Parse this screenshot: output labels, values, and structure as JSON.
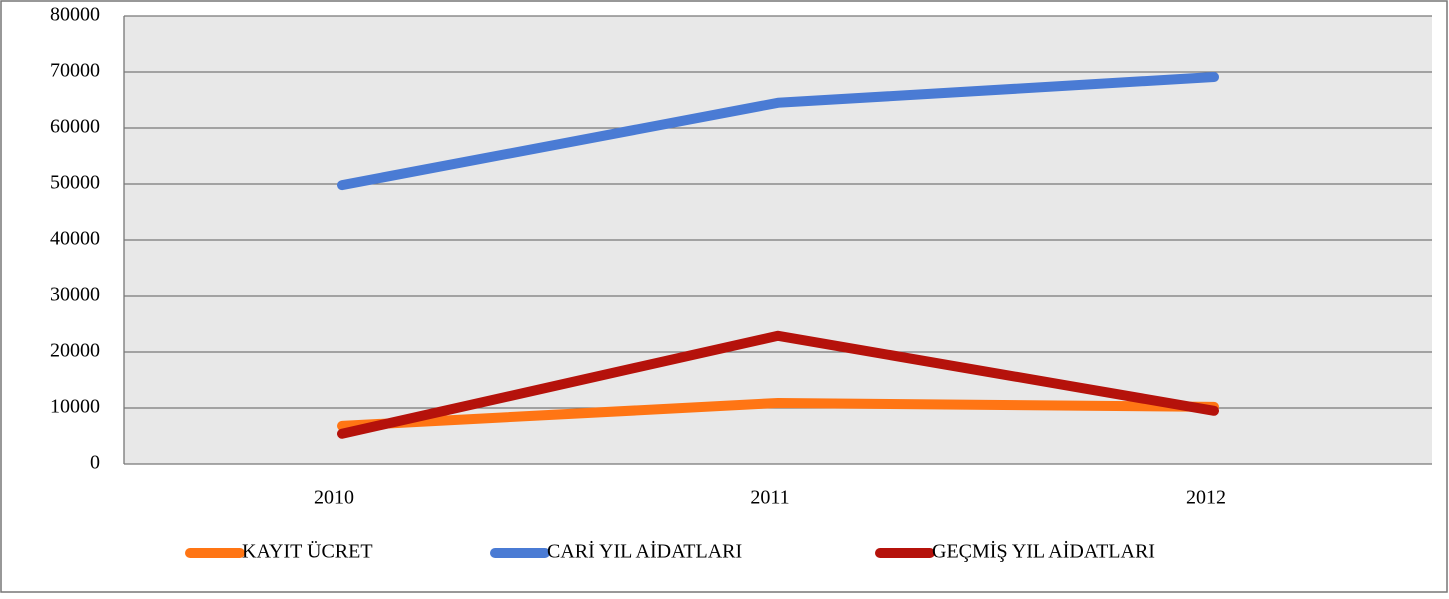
{
  "chart_data": {
    "type": "line",
    "categories": [
      "2010",
      "2011",
      "2012"
    ],
    "series": [
      {
        "name": "KAYIT ÜCRET",
        "color": "#ff7514",
        "values": [
          6800,
          10900,
          10200
        ]
      },
      {
        "name": "CARİ YIL AİDATLARI",
        "color": "#4a7bd4",
        "values": [
          49800,
          64500,
          69100
        ]
      },
      {
        "name": "GEÇMİŞ YIL AİDATLARI",
        "color": "#b5120b",
        "values": [
          5400,
          22900,
          9500
        ]
      }
    ],
    "ylim": [
      0,
      80000
    ],
    "yticks": [
      0,
      10000,
      20000,
      30000,
      40000,
      50000,
      60000,
      70000,
      80000
    ],
    "grid": true,
    "legend": "bottom"
  }
}
